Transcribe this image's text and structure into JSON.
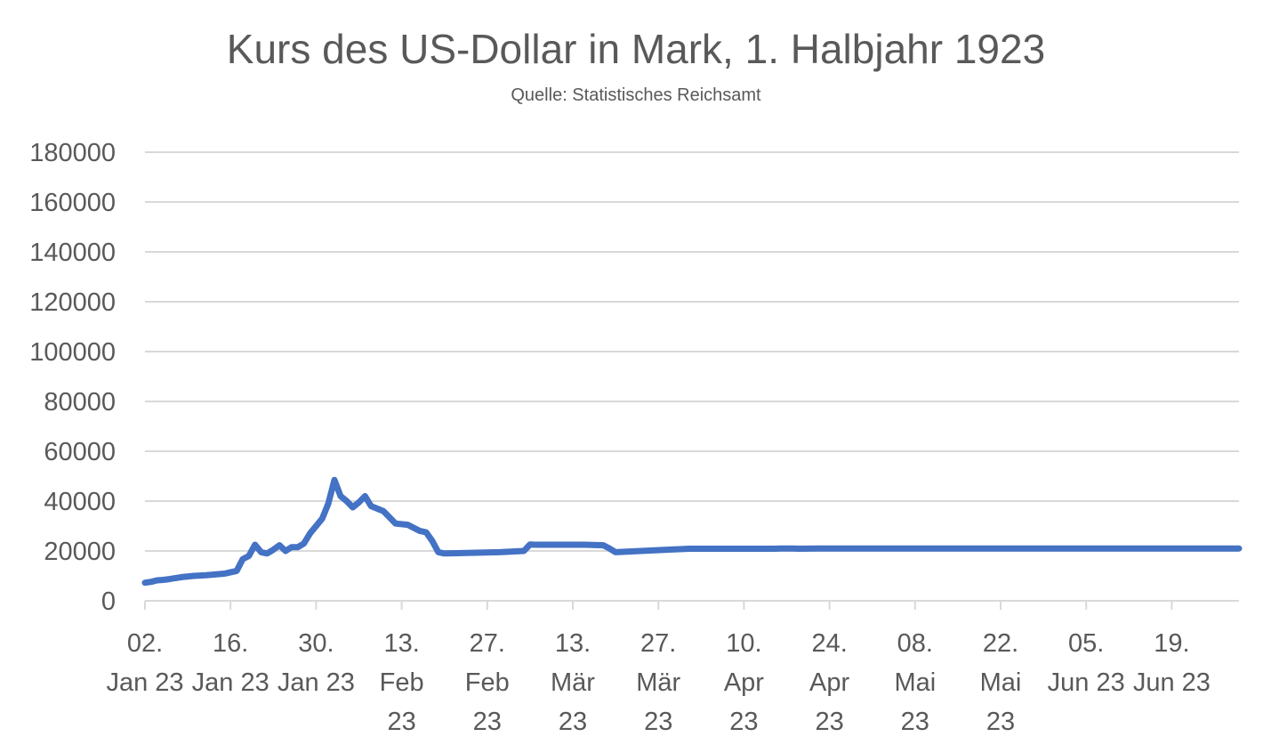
{
  "chart_data": {
    "type": "line",
    "title": "Kurs des US-Dollar in Mark, 1. Halbjahr 1923",
    "subtitle": "Quelle: Statistisches Reichsamt",
    "xlabel": "",
    "ylabel": "",
    "ylim": [
      0,
      180000
    ],
    "yticks": [
      "0",
      "20000",
      "40000",
      "60000",
      "80000",
      "100000",
      "120000",
      "140000",
      "160000",
      "180000"
    ],
    "grid": true,
    "line_color": "#4472C4",
    "x_tick_labels": [
      [
        "02.",
        "Jan 23"
      ],
      [
        "16.",
        "Jan 23"
      ],
      [
        "30.",
        "Jan 23"
      ],
      [
        "13.",
        "Feb",
        "23"
      ],
      [
        "27.",
        "Feb",
        "23"
      ],
      [
        "13.",
        "Mär",
        "23"
      ],
      [
        "27.",
        "Mär",
        "23"
      ],
      [
        "10.",
        "Apr",
        "23"
      ],
      [
        "24.",
        "Apr",
        "23"
      ],
      [
        "08.",
        "Mai",
        "23"
      ],
      [
        "22.",
        "Mai",
        "23"
      ],
      [
        "05.",
        "Jun 23"
      ],
      [
        "19.",
        "Jun 23"
      ]
    ],
    "series": [
      {
        "x": [
          "1923-01-02",
          "1923-01-03",
          "1923-01-04",
          "1923-01-05",
          "1923-01-06",
          "1923-01-08",
          "1923-01-10",
          "1923-01-12",
          "1923-01-15",
          "1923-01-17",
          "1923-01-18",
          "1923-01-19",
          "1923-01-20",
          "1923-01-21",
          "1923-01-22",
          "1923-01-23",
          "1923-01-24",
          "1923-01-25",
          "1923-01-26",
          "1923-01-27",
          "1923-01-28",
          "1923-01-29",
          "1923-01-30",
          "1923-01-31",
          "1923-02-01",
          "1923-02-02",
          "1923-02-03",
          "1923-02-04",
          "1923-02-05",
          "1923-02-06",
          "1923-02-07",
          "1923-02-08",
          "1923-02-10",
          "1923-02-11",
          "1923-02-12",
          "1923-02-14",
          "1923-02-16",
          "1923-02-17",
          "1923-02-18",
          "1923-02-19",
          "1923-02-20",
          "1923-03-01",
          "1923-03-05",
          "1923-03-06",
          "1923-03-07",
          "1923-03-08",
          "1923-03-12",
          "1923-03-15",
          "1923-03-18",
          "1923-03-19",
          "1923-03-20",
          "1923-04-01",
          "1923-04-10",
          "1923-04-15",
          "1923-04-16",
          "1923-04-17",
          "1923-04-18",
          "1923-04-19",
          "1923-04-22",
          "1923-04-23",
          "1923-04-24",
          "1923-04-25",
          "1923-04-26",
          "1923-04-27",
          "1923-04-30",
          "1923-05-01",
          "1923-05-02",
          "1923-05-03",
          "1923-05-04",
          "1923-05-05",
          "1923-05-06",
          "1923-05-07",
          "1923-05-08",
          "1923-05-09",
          "1923-05-10",
          "1923-05-11",
          "1923-05-12",
          "1923-05-13",
          "1923-05-14",
          "1923-05-15",
          "1923-05-16",
          "1923-05-17",
          "1923-05-19",
          "1923-05-21",
          "1923-05-22",
          "1923-05-23",
          "1923-05-24",
          "1923-05-25",
          "1923-05-26",
          "1923-05-27",
          "1923-05-28",
          "1923-05-29",
          "1923-05-30",
          "1923-05-31",
          "1923-06-01",
          "1923-06-02",
          "1923-06-03",
          "1923-06-04",
          "1923-06-05",
          "1923-06-06",
          "1923-06-07",
          "1923-06-08",
          "1923-06-09",
          "1923-06-10",
          "1923-06-11",
          "1923-06-12",
          "1923-06-13",
          "1923-06-14",
          "1923-06-15",
          "1923-06-16",
          "1923-06-17",
          "1923-06-18",
          "1923-06-19",
          "1923-06-20",
          "1923-06-21",
          "1923-06-22",
          "1923-06-23",
          "1923-06-24",
          "1923-06-25",
          "1923-06-26",
          "1923-06-27",
          "1923-06-28",
          "1923-06-29",
          "1923-06-30"
        ],
        "y": [
          7260,
          7600,
          8200,
          8400,
          8700,
          9500,
          10000,
          10300,
          10900,
          12000,
          16700,
          18000,
          22500,
          19500,
          19000,
          20500,
          22300,
          20000,
          21500,
          21500,
          23000,
          27000,
          30000,
          33000,
          39000,
          48500,
          42000,
          40000,
          37500,
          39500,
          42000,
          38000,
          36000,
          33500,
          31000,
          30500,
          28000,
          27500,
          24000,
          19500,
          19000,
          19500,
          20000,
          22600,
          22500,
          22500,
          22500,
          22500,
          22300,
          21000,
          19500,
          20900,
          20900,
          20900,
          21000,
          21000,
          21000,
          20900,
          21000,
          21000,
          21000,
          21000,
          21000,
          21000,
          21000,
          21000,
          21000,
          21000,
          21000,
          21000,
          21000,
          21000,
          21000,
          21000,
          21000,
          21000,
          21000,
          21000,
          21000,
          21000,
          21000,
          21000,
          21000,
          21000,
          21000,
          21000,
          21000,
          21000,
          21000,
          21000,
          21000,
          21000,
          21000,
          21000,
          21000,
          21000,
          21000,
          21000,
          21000,
          21000,
          21000,
          21000,
          21000,
          21000,
          21000,
          21000,
          21000,
          21000,
          21000,
          21000,
          21000,
          21000,
          21000,
          21000,
          21000,
          21000,
          21000,
          21000,
          21000,
          21000,
          21000,
          21000,
          21000,
          21000
        ]
      }
    ]
  }
}
